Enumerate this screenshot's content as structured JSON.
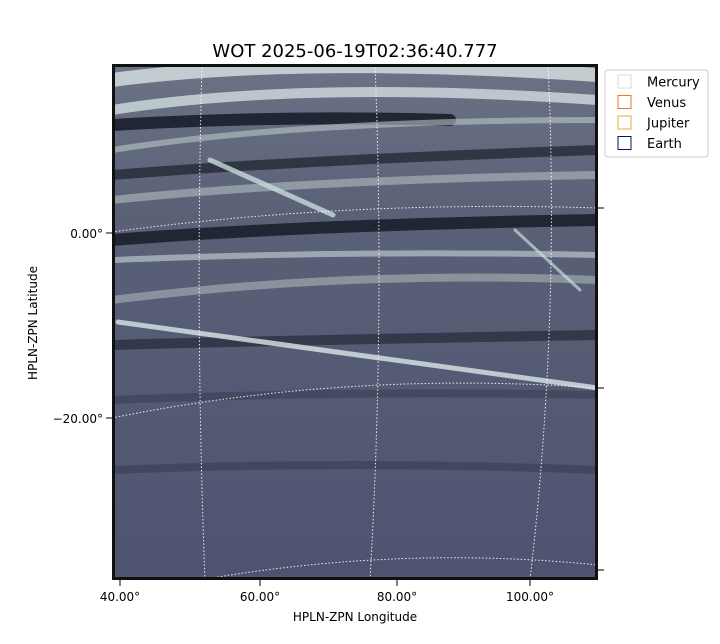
{
  "title": "WOT 2025-06-19T02:36:40.777",
  "x_axis": {
    "label": "HPLN-ZPN Longitude",
    "ticks": [
      "40.00°",
      "60.00°",
      "80.00°",
      "100.00°"
    ]
  },
  "y_axis": {
    "label": "HPLN-ZPN Latitude",
    "ticks": [
      "0.00°",
      "−20.00°"
    ]
  },
  "legend": [
    {
      "label": "Mercury",
      "color": "#d8d8d8"
    },
    {
      "label": "Venus",
      "color": "#e07a3a"
    },
    {
      "label": "Jupiter",
      "color": "#e0b030"
    },
    {
      "label": "Earth",
      "color": "#10106a"
    }
  ]
}
